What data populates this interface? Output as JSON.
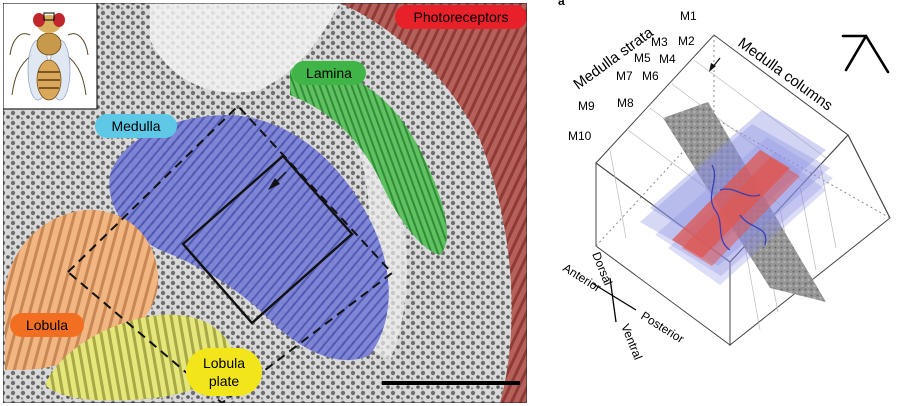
{
  "left_panel": {
    "region_labels": {
      "photoreceptors": "Photoreceptors",
      "lamina": "Lamina",
      "medulla": "Medulla",
      "lobula": "Lobula",
      "lobula_plate_line1": "Lobula",
      "lobula_plate_line2": "plate"
    },
    "colors": {
      "photoreceptors": "#a8413e",
      "lamina": "#47b14a",
      "medulla": "#5a63cc",
      "lobula": "#f1a266",
      "lobula_plate": "#e2e25a",
      "label_photoreceptors_bg": "#e8202a",
      "label_lamina_bg": "#3fb548",
      "label_medulla_bg": "#5ec8e6",
      "label_lobula_bg": "#f26f22",
      "label_lobula_plate_bg": "#f2e61a"
    }
  },
  "right_panel": {
    "panel_letter": "a",
    "strata_title": "Medulla strata",
    "columns_title": "Medulla columns",
    "strata_labels": [
      "M1",
      "M2",
      "M3",
      "M4",
      "M5",
      "M6",
      "M7",
      "M8",
      "M9",
      "M10"
    ],
    "orientation": {
      "dorsal": "Dorsal",
      "ventral": "Ventral",
      "anterior": "Anterior",
      "posterior": "Posterior"
    },
    "colors": {
      "volume_blue": "#8a8fe0",
      "volume_red": "#e0564e",
      "em_slab": "#8c8c8c"
    }
  }
}
